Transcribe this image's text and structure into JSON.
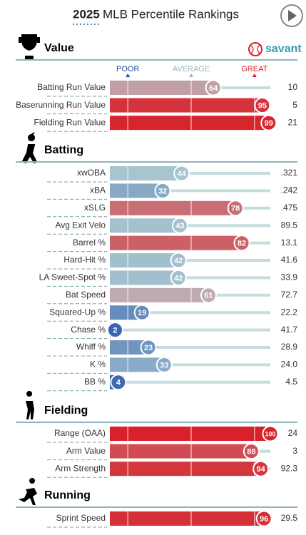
{
  "header": {
    "year": "2025",
    "title": "MLB Percentile Rankings",
    "brand": "savant"
  },
  "scale": {
    "xlim": [
      0,
      100
    ],
    "xticks": [
      10,
      50,
      90
    ],
    "labels": [
      "POOR",
      "AVERAGE",
      "GREAT"
    ],
    "colors": [
      "#3361ad",
      "#b7d1d4",
      "#d8212a"
    ]
  },
  "chart_data": [
    {
      "type": "bar",
      "title": "Value",
      "categories": [
        "Batting Run Value",
        "Baserunning Run Value",
        "Fielding Run Value"
      ],
      "values": [
        64,
        95,
        99
      ],
      "stats": [
        "10",
        "5",
        "21"
      ]
    },
    {
      "type": "bar",
      "title": "Batting",
      "categories": [
        "xwOBA",
        "xBA",
        "xSLG",
        "Avg Exit Velo",
        "Barrel %",
        "Hard-Hit %",
        "LA Sweet-Spot %",
        "Bat Speed",
        "Squared-Up %",
        "Chase %",
        "Whiff %",
        "K %",
        "BB %"
      ],
      "values": [
        44,
        32,
        78,
        43,
        82,
        42,
        42,
        61,
        19,
        2,
        23,
        33,
        4
      ],
      "stats": [
        ".321",
        ".242",
        ".475",
        "89.5",
        "13.1",
        "41.6",
        "33.9",
        "72.7",
        "22.2",
        "41.7",
        "28.9",
        "24.0",
        "4.5"
      ]
    },
    {
      "type": "bar",
      "title": "Fielding",
      "categories": [
        "Range (OAA)",
        "Arm Value",
        "Arm Strength"
      ],
      "values": [
        100,
        88,
        94
      ],
      "stats": [
        "24",
        "3",
        "92.3"
      ]
    },
    {
      "type": "bar",
      "title": "Running",
      "categories": [
        "Sprint Speed"
      ],
      "values": [
        96
      ],
      "stats": [
        "29.5"
      ]
    }
  ]
}
